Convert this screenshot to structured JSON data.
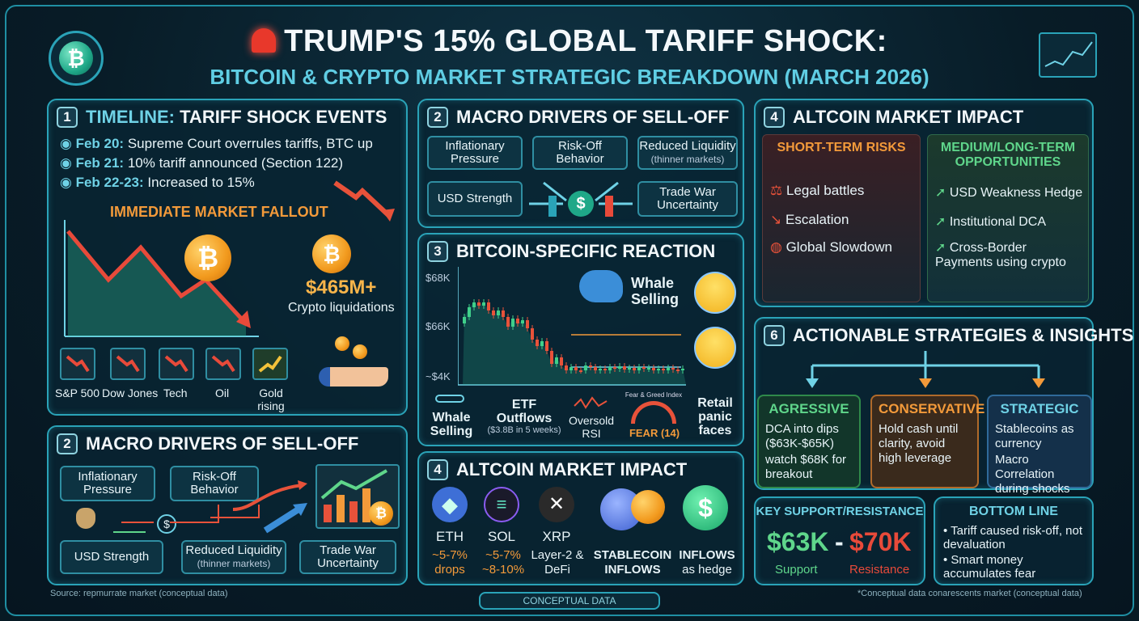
{
  "header": {
    "title": "TRUMP'S 15% GLOBAL TARIFF SHOCK:",
    "subtitle": "BITCOIN & CRYPTO MARKET STRATEGIC BREAKDOWN (MARCH 2026)",
    "siren_icon": "siren-icon"
  },
  "timeline": {
    "num": "1",
    "title_a": "TIMELINE:",
    "title_b": "TARIFF SHOCK EVENTS",
    "events": [
      {
        "date": "Feb 20:",
        "text": "Supreme Court overrules tariffs, BTC up"
      },
      {
        "date": "Feb 21:",
        "text": "10% tariff announced (Section 122)"
      },
      {
        "date": "Feb 22-23:",
        "text": "Increased to 15%"
      }
    ],
    "fallout": "IMMEDIATE MARKET FALLOUT",
    "liquidations_value": "$465M+",
    "liquidations_label": "Crypto liquidations",
    "markets": [
      "S&P 500",
      "Dow Jones",
      "Tech",
      "Oil",
      "Gold rising"
    ]
  },
  "macro_top": {
    "num": "2",
    "title": "MACRO DRIVERS OF SELL-OFF",
    "items": [
      {
        "label": "Inflationary Pressure",
        "sub": ""
      },
      {
        "label": "Risk-Off Behavior",
        "sub": ""
      },
      {
        "label": "Reduced Liquidity",
        "sub": "(thinner markets)"
      },
      {
        "label": "USD Strength",
        "sub": ""
      },
      {
        "label": "Trade War Uncertainty",
        "sub": ""
      }
    ]
  },
  "btc": {
    "num": "3",
    "title": "BITCOIN-SPECIFIC REACTION",
    "yticks": [
      "$68K",
      "$66K",
      "~$4K"
    ],
    "whale_label": "Whale Selling",
    "bottom": [
      {
        "label": "Whale Selling",
        "sub": ""
      },
      {
        "label": "ETF Outflows",
        "sub": "($3.8B in 5 weeks)"
      },
      {
        "label": "Oversold RSI",
        "sub": ""
      },
      {
        "label": "FEAR (14)",
        "sub": "Fear & Greed Index"
      },
      {
        "label": "Retail panic faces",
        "sub": ""
      }
    ]
  },
  "alt_top": {
    "num": "4",
    "title": "ALTCOIN MARKET IMPACT",
    "risks_title": "SHORT-TERM RISKS",
    "risks": [
      "Legal battles",
      "Escalation",
      "Global Slowdown"
    ],
    "opps_title": "MEDIUM/LONG-TERM OPPORTUNITIES",
    "opps": [
      "USD Weakness Hedge",
      "Institutional DCA",
      "Cross-Border Payments using crypto"
    ]
  },
  "macro_bottom": {
    "num": "2",
    "title": "MACRO DRIVERS OF SELL-OFF",
    "items": [
      {
        "label": "Inflationary Pressure",
        "sub": ""
      },
      {
        "label": "Risk-Off Behavior",
        "sub": ""
      },
      {
        "label": "USD Strength",
        "sub": ""
      },
      {
        "label": "Reduced Liquidity",
        "sub": "(thinner markets)"
      },
      {
        "label": "Trade War Uncertainty",
        "sub": ""
      }
    ]
  },
  "alt_bottom": {
    "num": "4",
    "title": "ALTCOIN MARKET IMPACT",
    "coins": [
      {
        "name": "ETH",
        "change": "~5-7% drops"
      },
      {
        "name": "SOL",
        "change": "~5-7% ~8-10%"
      },
      {
        "name": "XRP",
        "change": "Layer-2 & DeFi"
      },
      {
        "name": "STABLECOIN INFLOWS",
        "change": ""
      },
      {
        "name": "INFLOWS",
        "change": "as hedge"
      }
    ]
  },
  "strategies": {
    "num": "6",
    "title": "ACTIONABLE STRATEGIES & INSIGHTS",
    "aggressive": {
      "title": "AGRESSIVE",
      "items": [
        "DCA into dips ($63K-$65K)",
        "watch $68K for breakout"
      ]
    },
    "conservative": {
      "title": "CONSERVATIVE",
      "items": [
        "Hold cash until clarity, avoid high leverage"
      ]
    },
    "strategic": {
      "title": "STRATEGIC",
      "items": [
        "Stablecoins as currency",
        "Macro Correlation during shocks"
      ]
    }
  },
  "levels": {
    "title": "KEY SUPPORT/RESISTANCE",
    "support": "$63K",
    "dash": "-",
    "resistance": "$70K",
    "support_label": "Support",
    "resistance_label": "Resistance"
  },
  "bottom_line": {
    "title": "BOTTOM LINE",
    "items": [
      "Tariff caused risk-off, not devaluation",
      "Smart money accumulates fear"
    ]
  },
  "footer": {
    "source": "Source: repmurrate market (conceptual data)",
    "center": "CONCEPTUAL DATA",
    "note": "*Conceptual data conarescents market (conceptual data)"
  },
  "colors": {
    "accent": "#2aa3b8",
    "orange": "#f39a3a",
    "green": "#5fd68b",
    "red": "#e84a3a"
  }
}
